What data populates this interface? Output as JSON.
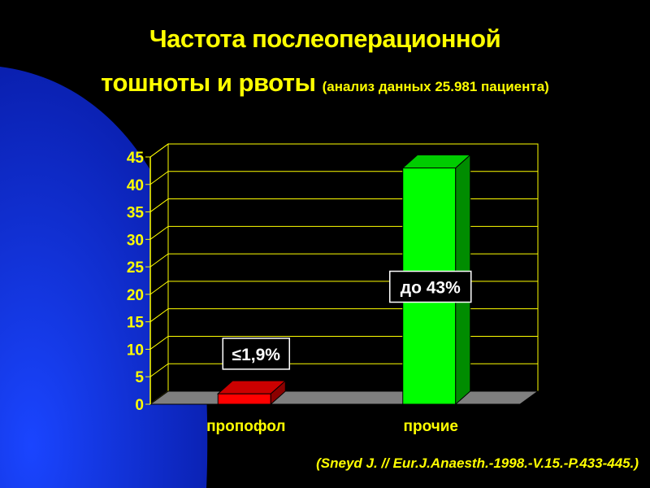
{
  "slide": {
    "title_line1": "Частота послеоперационной",
    "title_line2_main": "тошноты и рвоты",
    "title_line2_sub": "(анализ данных 25.981 пациента)",
    "citation": "(Sneyd J. // Eur.J.Anaesth.-1998.-V.15.-P.433-445.)"
  },
  "colors": {
    "background": "#000000",
    "background_shape": "#0a2fd0",
    "text": "#ffff00",
    "gridline": "#ffff00",
    "floor": "#7f7f7f"
  },
  "chart_data": {
    "type": "bar",
    "three_d": true,
    "categories": [
      "пропофол",
      "прочие"
    ],
    "series": [
      {
        "values": [
          1.9,
          43
        ],
        "colors": [
          "#ff0000",
          "#00ff00"
        ]
      }
    ],
    "data_labels": [
      "≤1,9%",
      "до 43%"
    ],
    "ylim": [
      0,
      45
    ],
    "yticks": [
      0,
      5,
      10,
      15,
      20,
      25,
      30,
      35,
      40,
      45
    ],
    "grid": true,
    "legend": "none"
  }
}
